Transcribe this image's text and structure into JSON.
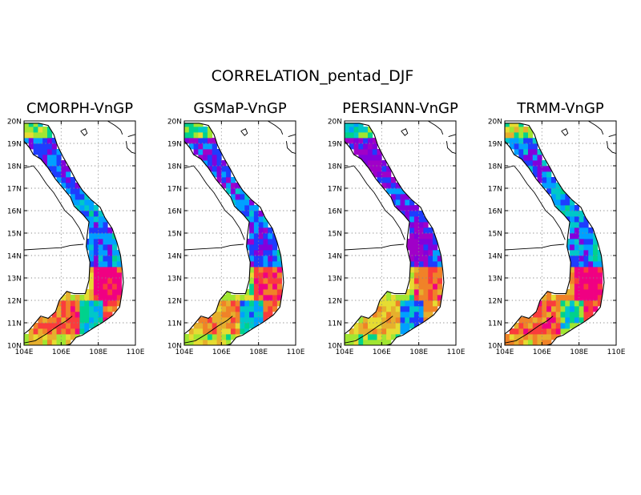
{
  "figure": {
    "title": "CORRELATION_pentad_DJF",
    "panels": [
      {
        "title": "CMORPH-VnGP"
      },
      {
        "title": "GSMaP-VnGP"
      },
      {
        "title": "PERSIANN-VnGP"
      },
      {
        "title": "TRMM-VnGP"
      }
    ],
    "lon_ticks": [
      "104E",
      "106E",
      "108E",
      "110E"
    ],
    "lat_ticks": [
      "10N",
      "11N",
      "12N",
      "13N",
      "14N",
      "15N",
      "16N",
      "17N",
      "18N",
      "19N",
      "20N"
    ],
    "lon_range": [
      104,
      110
    ],
    "lat_range": [
      10,
      20
    ],
    "grid": "dotted"
  },
  "palette": [
    "#a000c8",
    "#8200dc",
    "#1e3cff",
    "#00a0ff",
    "#00c8c8",
    "#00d28c",
    "#a0e632",
    "#e6dc32",
    "#e6af2d",
    "#f08228",
    "#fa3c3c",
    "#f00082"
  ]
}
